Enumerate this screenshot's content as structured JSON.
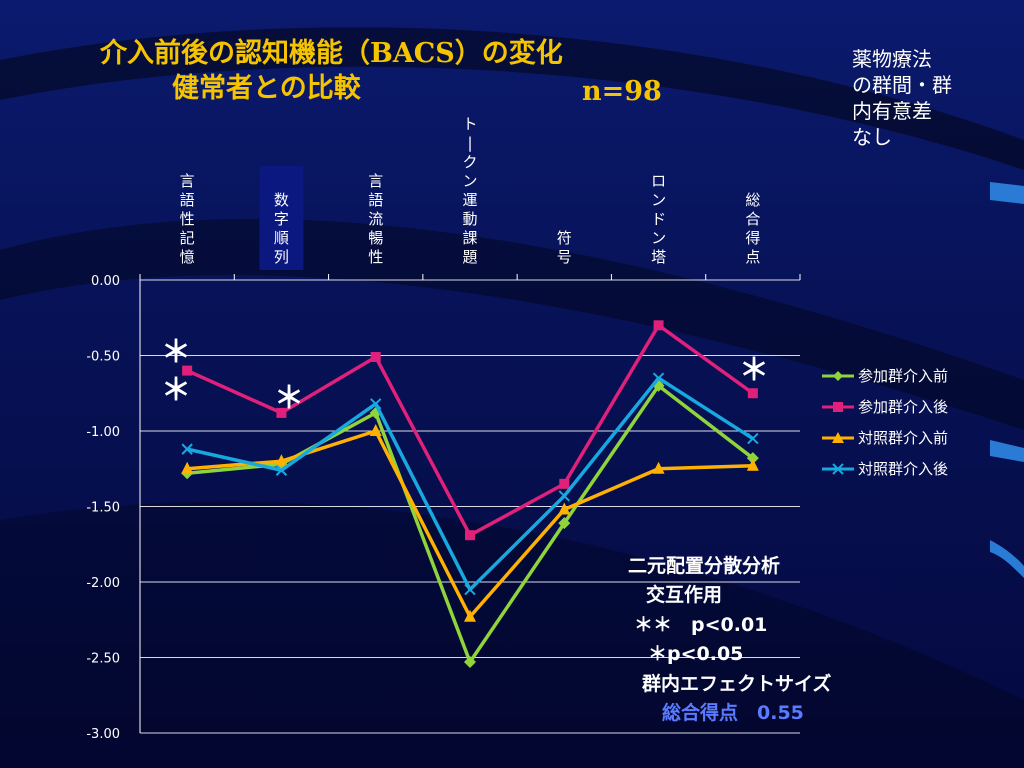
{
  "title": {
    "line1": "介入前後の認知機能（BACS）の変化",
    "line2": "健常者との比較",
    "n": "n=98"
  },
  "note": {
    "lines": [
      "薬物療法",
      "の群間・群",
      "内有意差",
      "なし"
    ]
  },
  "stats": {
    "l1": "二元配置分散分析",
    "l2": "交互作用",
    "l3": "＊＊　p<0.01",
    "l4": "＊p<0.05",
    "l5": "群内エフェクトサイズ",
    "l6": "総合得点　0.55"
  },
  "annotations": {
    "star_double_top": "＊",
    "star_double_bottom": "＊",
    "star_single_1": "＊",
    "star_single_2": "＊"
  },
  "colors": {
    "green": "#8fd43b",
    "magenta": "#e0207a",
    "orange": "#ffb000",
    "cyan": "#18a8e0",
    "axis": "#ffffff",
    "highlight": "#0a1880"
  },
  "chart_data": {
    "type": "line",
    "categories": [
      "言語性記憶",
      "数字順列",
      "言語流暢性",
      "トークン運動課題",
      "符号",
      "ロンドン塔",
      "総合得点"
    ],
    "ylim": [
      -3.0,
      0.0
    ],
    "yticks": [
      "0.00",
      "-0.50",
      "-1.00",
      "-1.50",
      "-2.00",
      "-2.50",
      "-3.00"
    ],
    "grid": true,
    "legend_position": "right",
    "series": [
      {
        "name": "参加群介入前",
        "color": "#8fd43b",
        "marker": "diamond",
        "values": [
          -1.28,
          -1.22,
          -0.88,
          -2.53,
          -1.61,
          -0.7,
          -1.18
        ]
      },
      {
        "name": "参加群介入後",
        "color": "#e0207a",
        "marker": "square",
        "values": [
          -0.6,
          -0.88,
          -0.51,
          -1.69,
          -1.35,
          -0.3,
          -0.75
        ]
      },
      {
        "name": "対照群介入前",
        "color": "#ffb000",
        "marker": "triangle",
        "values": [
          -1.25,
          -1.2,
          -1.0,
          -2.23,
          -1.52,
          -1.25,
          -1.23
        ]
      },
      {
        "name": "対照群介入後",
        "color": "#18a8e0",
        "marker": "x",
        "values": [
          -1.12,
          -1.26,
          -0.82,
          -2.05,
          -1.43,
          -0.65,
          -1.05
        ]
      }
    ]
  }
}
